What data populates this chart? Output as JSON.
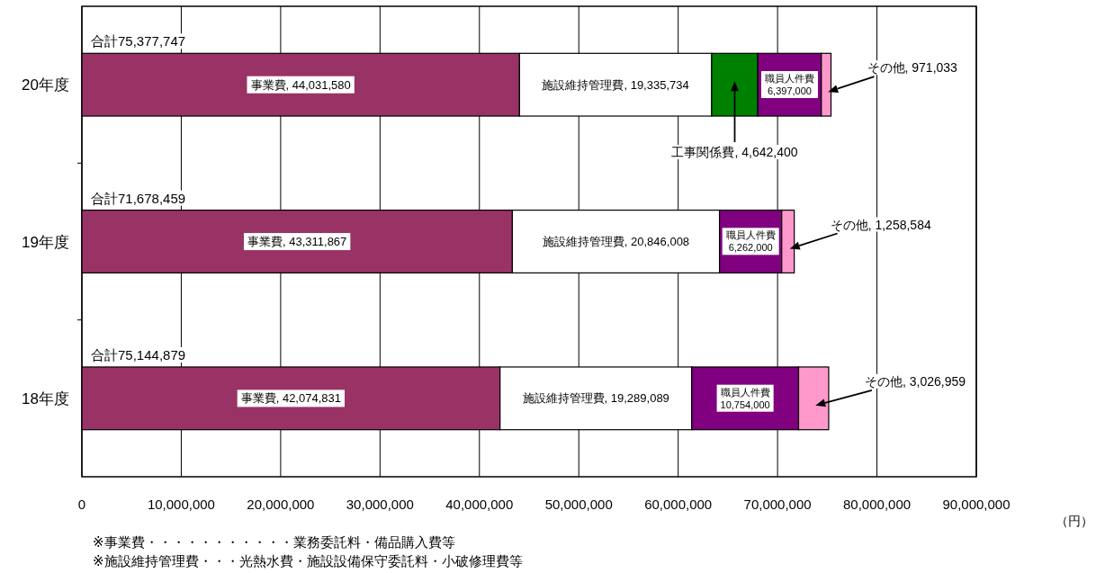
{
  "chart_data": {
    "type": "bar",
    "orientation": "horizontal",
    "stacked": true,
    "categories": [
      "20年度",
      "19年度",
      "18年度"
    ],
    "series": [
      {
        "name": "事業費",
        "color": "#993366",
        "values": [
          44031580,
          43311867,
          42074831
        ],
        "value_labels": [
          ", 44,031,580",
          ", 43,311,867",
          ", 42,074,831"
        ]
      },
      {
        "name": "施設維持管理費",
        "color": "#ffffff",
        "values": [
          19335734,
          20846008,
          19289089
        ],
        "value_labels": [
          ", 19,335,734",
          ", 20,846,008",
          ", 19,289,089"
        ]
      },
      {
        "name": "工事関係費",
        "color": "#008000",
        "values": [
          4642400,
          null,
          null
        ],
        "value_labels": [
          ", 4,642,400",
          null,
          null
        ]
      },
      {
        "name": "職員人件費",
        "color": "#800080",
        "values": [
          6397000,
          6262000,
          10754000
        ],
        "value_labels": [
          "6,397,000",
          "6,262,000",
          "10,754,000"
        ]
      },
      {
        "name": "その他",
        "color": "#ff99cc",
        "values": [
          971033,
          1258584,
          3026959
        ],
        "value_labels": [
          ", 971,033",
          ", 1,258,584",
          ", 3,026,959"
        ]
      }
    ],
    "totals": [
      "合計75,377,747",
      "合計71,678,459",
      "合計75,144,879"
    ],
    "xlim": [
      0,
      90000000
    ],
    "xticks": [
      0,
      {
        "value": 10000000,
        "label": "10,000,000"
      },
      {
        "value": 20000000,
        "label": "20,000,000"
      },
      {
        "value": 30000000,
        "label": "30,000,000"
      },
      {
        "value": 40000000,
        "label": "40,000,000"
      },
      {
        "value": 50000000,
        "label": "50,000,000"
      },
      {
        "value": 60000000,
        "label": "60,000,000"
      },
      {
        "value": 70000000,
        "label": "70,000,000"
      },
      {
        "value": 80000000,
        "label": "80,000,000"
      },
      {
        "value": 90000000,
        "label": "90,000,000"
      }
    ],
    "xlabel": "（円）",
    "grid": "x",
    "annotations": [
      "※事業費・・・・・・・・・・・業務委託料・備品購入費等",
      "※施設維持管理費・・・光熱水費・施設設備保守委託料・小破修理費等"
    ]
  }
}
